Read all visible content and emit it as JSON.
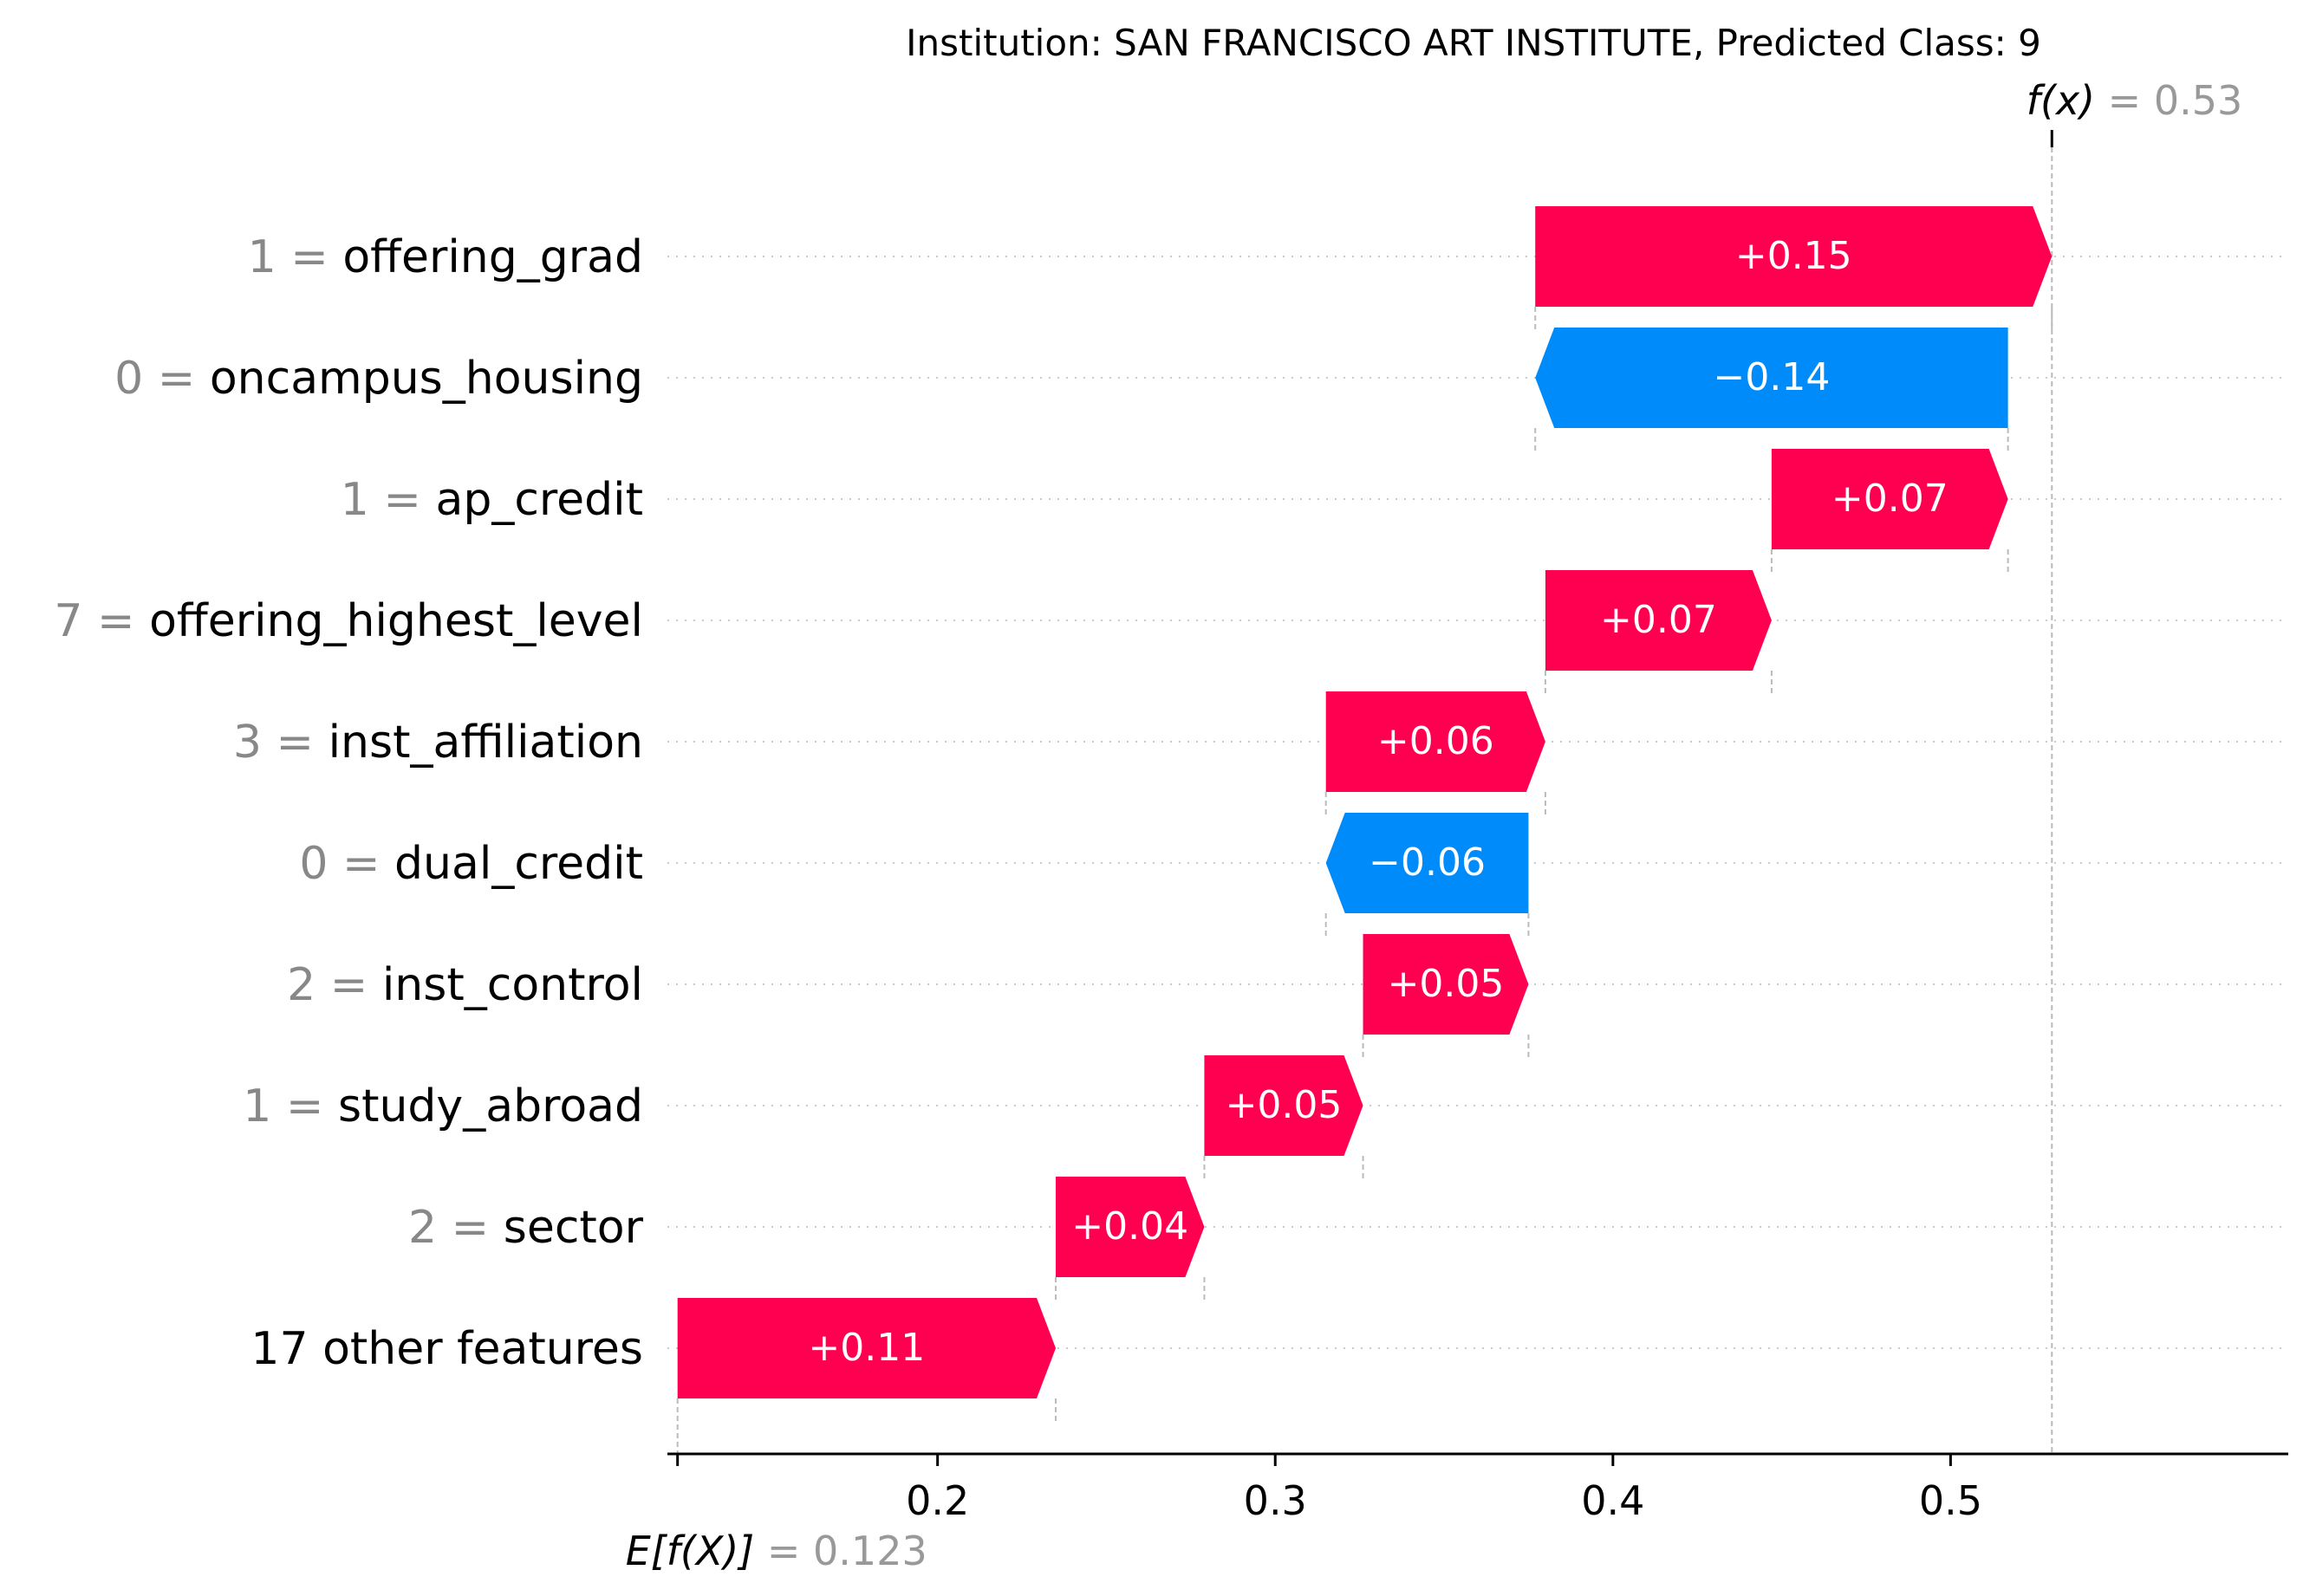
{
  "chart_data": {
    "type": "waterfall",
    "title": "Institution: SAN FRANCISCO ART INSTITUTE, Predicted Class: 9",
    "base_value": 0.123,
    "base_value_label": "0.123",
    "base_label": "E[f(X)]",
    "output_value": 0.53,
    "output_value_label": "0.53",
    "output_label": "f(x)",
    "xlim": [
      0.12,
      0.6
    ],
    "ticks": [
      {
        "value": 0.2,
        "label": "0.2"
      },
      {
        "value": 0.3,
        "label": "0.3"
      },
      {
        "value": 0.4,
        "label": "0.4"
      },
      {
        "value": 0.5,
        "label": "0.5"
      }
    ],
    "features": [
      {
        "value_text": "1",
        "name": "offering_grad",
        "start": 0.377,
        "end": 0.53,
        "label": "+0.15"
      },
      {
        "value_text": "0",
        "name": "oncampus_housing",
        "start": 0.517,
        "end": 0.377,
        "label": "−0.14"
      },
      {
        "value_text": "1",
        "name": "ap_credit",
        "start": 0.447,
        "end": 0.517,
        "label": "+0.07"
      },
      {
        "value_text": "7",
        "name": "offering_highest_level",
        "start": 0.38,
        "end": 0.447,
        "label": "+0.07"
      },
      {
        "value_text": "3",
        "name": "inst_affiliation",
        "start": 0.315,
        "end": 0.38,
        "label": "+0.06"
      },
      {
        "value_text": "0",
        "name": "dual_credit",
        "start": 0.375,
        "end": 0.315,
        "label": "−0.06"
      },
      {
        "value_text": "2",
        "name": "inst_control",
        "start": 0.326,
        "end": 0.375,
        "label": "+0.05"
      },
      {
        "value_text": "1",
        "name": "study_abroad",
        "start": 0.279,
        "end": 0.326,
        "label": "+0.05"
      },
      {
        "value_text": "2",
        "name": "sector",
        "start": 0.235,
        "end": 0.279,
        "label": "+0.04"
      },
      {
        "value_text": "",
        "name": "17 other features",
        "start": 0.123,
        "end": 0.235,
        "label": "+0.11"
      }
    ],
    "colors": {
      "positive": "#ff0051",
      "negative": "#008bfb",
      "grid": "#cccccc",
      "muted_text": "#888888"
    }
  }
}
